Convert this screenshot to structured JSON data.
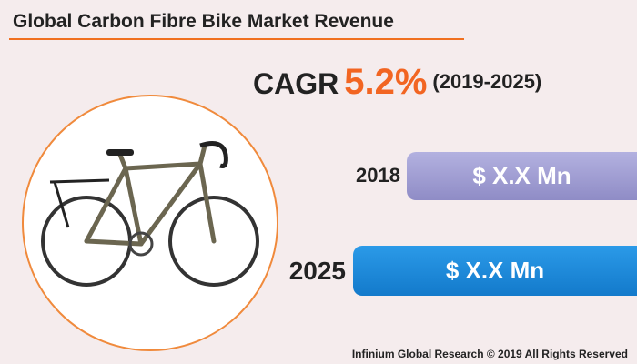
{
  "header": {
    "title": "Global Carbon Fibre Bike Market Revenue"
  },
  "cagr": {
    "label": "CAGR",
    "value": "5.2%",
    "period": "(2019-2025)"
  },
  "rows": [
    {
      "year": "2018",
      "value": "$ X.X Mn"
    },
    {
      "year": "2025",
      "value": "$ X.X Mn"
    }
  ],
  "footer": "Infinium Global Research © 2019 All Rights Reserved"
}
